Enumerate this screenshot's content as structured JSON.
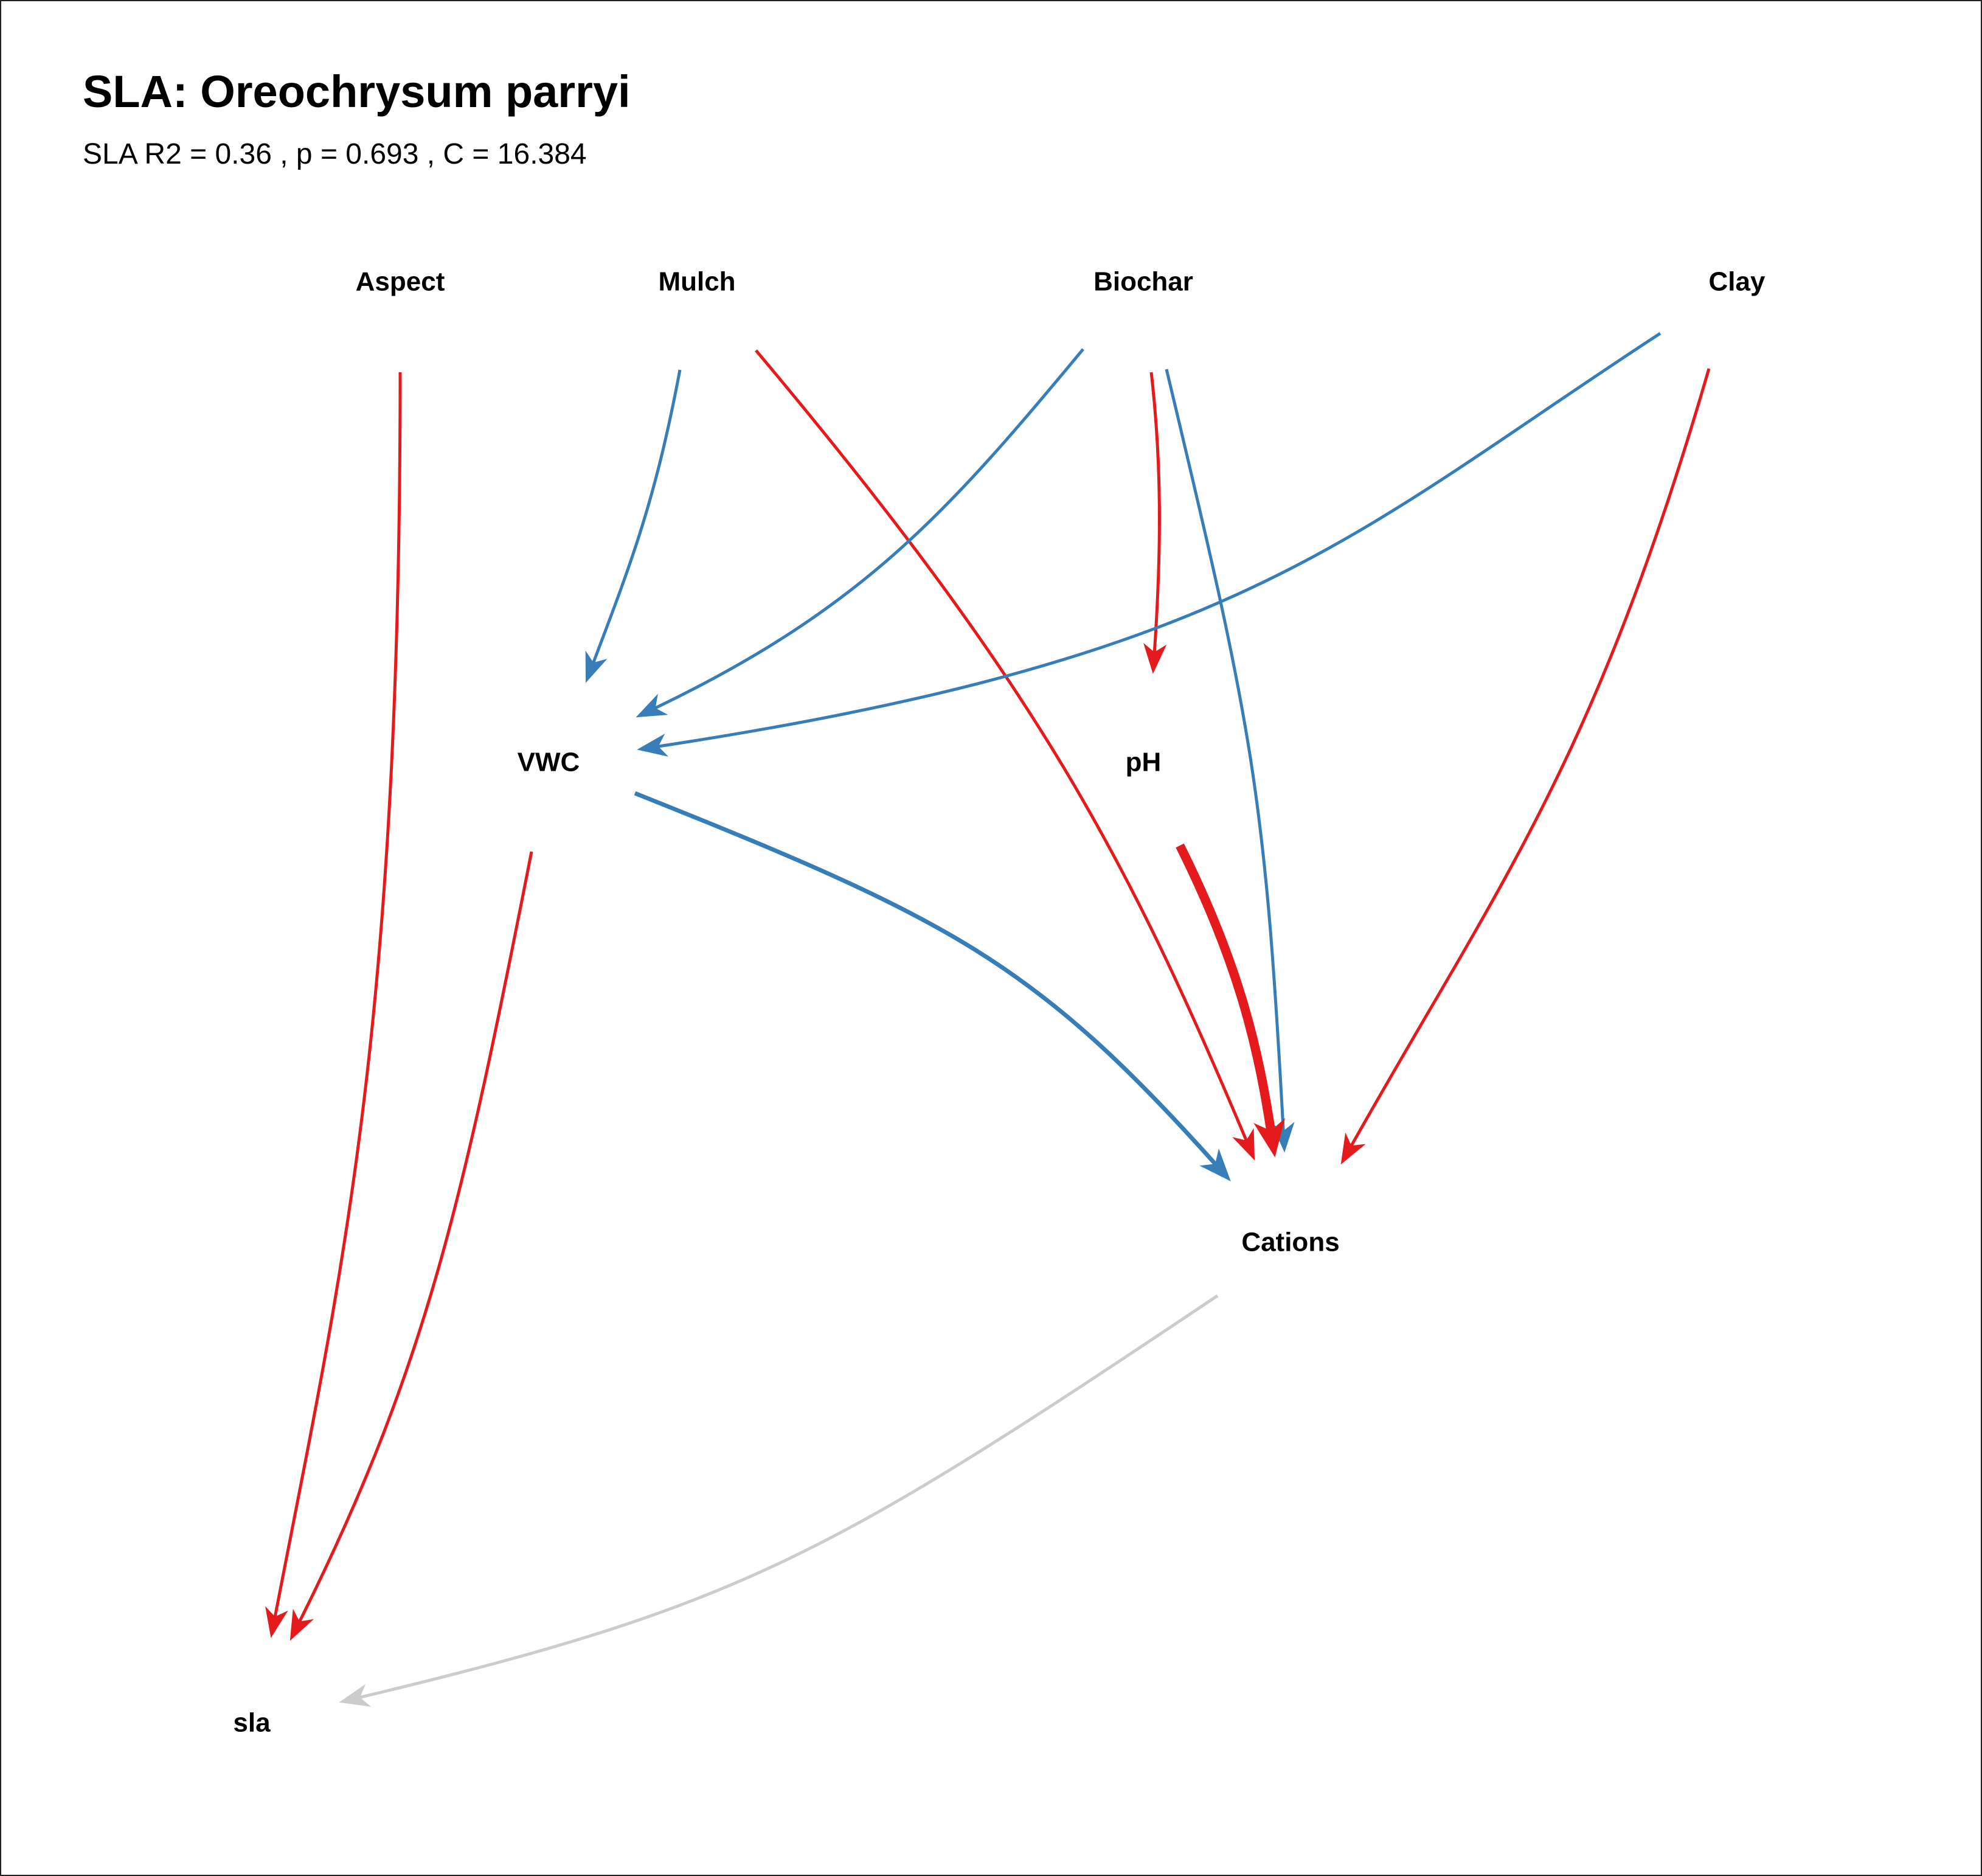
{
  "title": "SLA: Oreochrysum parryi",
  "subtitle": "SLA R2 = 0.36 , p =  0.693 , C = 16.384",
  "colors": {
    "positive": "#E41A1C",
    "negative": "#377EB8",
    "nonsignificant": "#CCCCCC"
  },
  "nodes": [
    {
      "id": "aspect",
      "label": "Aspect"
    },
    {
      "id": "mulch",
      "label": "Mulch"
    },
    {
      "id": "biochar",
      "label": "Biochar"
    },
    {
      "id": "clay",
      "label": "Clay"
    },
    {
      "id": "vwc",
      "label": "VWC"
    },
    {
      "id": "ph",
      "label": "pH"
    },
    {
      "id": "cations",
      "label": "Cations"
    },
    {
      "id": "sla",
      "label": "sla"
    }
  ],
  "edges": [
    {
      "from": "aspect",
      "to": "sla",
      "sign": "positive",
      "strength": "weak"
    },
    {
      "from": "vwc",
      "to": "sla",
      "sign": "positive",
      "strength": "weak"
    },
    {
      "from": "cations",
      "to": "sla",
      "sign": "nonsignificant",
      "strength": "weak"
    },
    {
      "from": "mulch",
      "to": "vwc",
      "sign": "negative",
      "strength": "weak"
    },
    {
      "from": "mulch",
      "to": "cations",
      "sign": "positive",
      "strength": "weak"
    },
    {
      "from": "biochar",
      "to": "vwc",
      "sign": "negative",
      "strength": "weak"
    },
    {
      "from": "biochar",
      "to": "ph",
      "sign": "positive",
      "strength": "weak"
    },
    {
      "from": "biochar",
      "to": "cations",
      "sign": "negative",
      "strength": "weak"
    },
    {
      "from": "clay",
      "to": "vwc",
      "sign": "negative",
      "strength": "weak"
    },
    {
      "from": "clay",
      "to": "cations",
      "sign": "positive",
      "strength": "weak"
    },
    {
      "from": "vwc",
      "to": "cations",
      "sign": "negative",
      "strength": "medium"
    },
    {
      "from": "ph",
      "to": "cations",
      "sign": "positive",
      "strength": "strong"
    }
  ]
}
